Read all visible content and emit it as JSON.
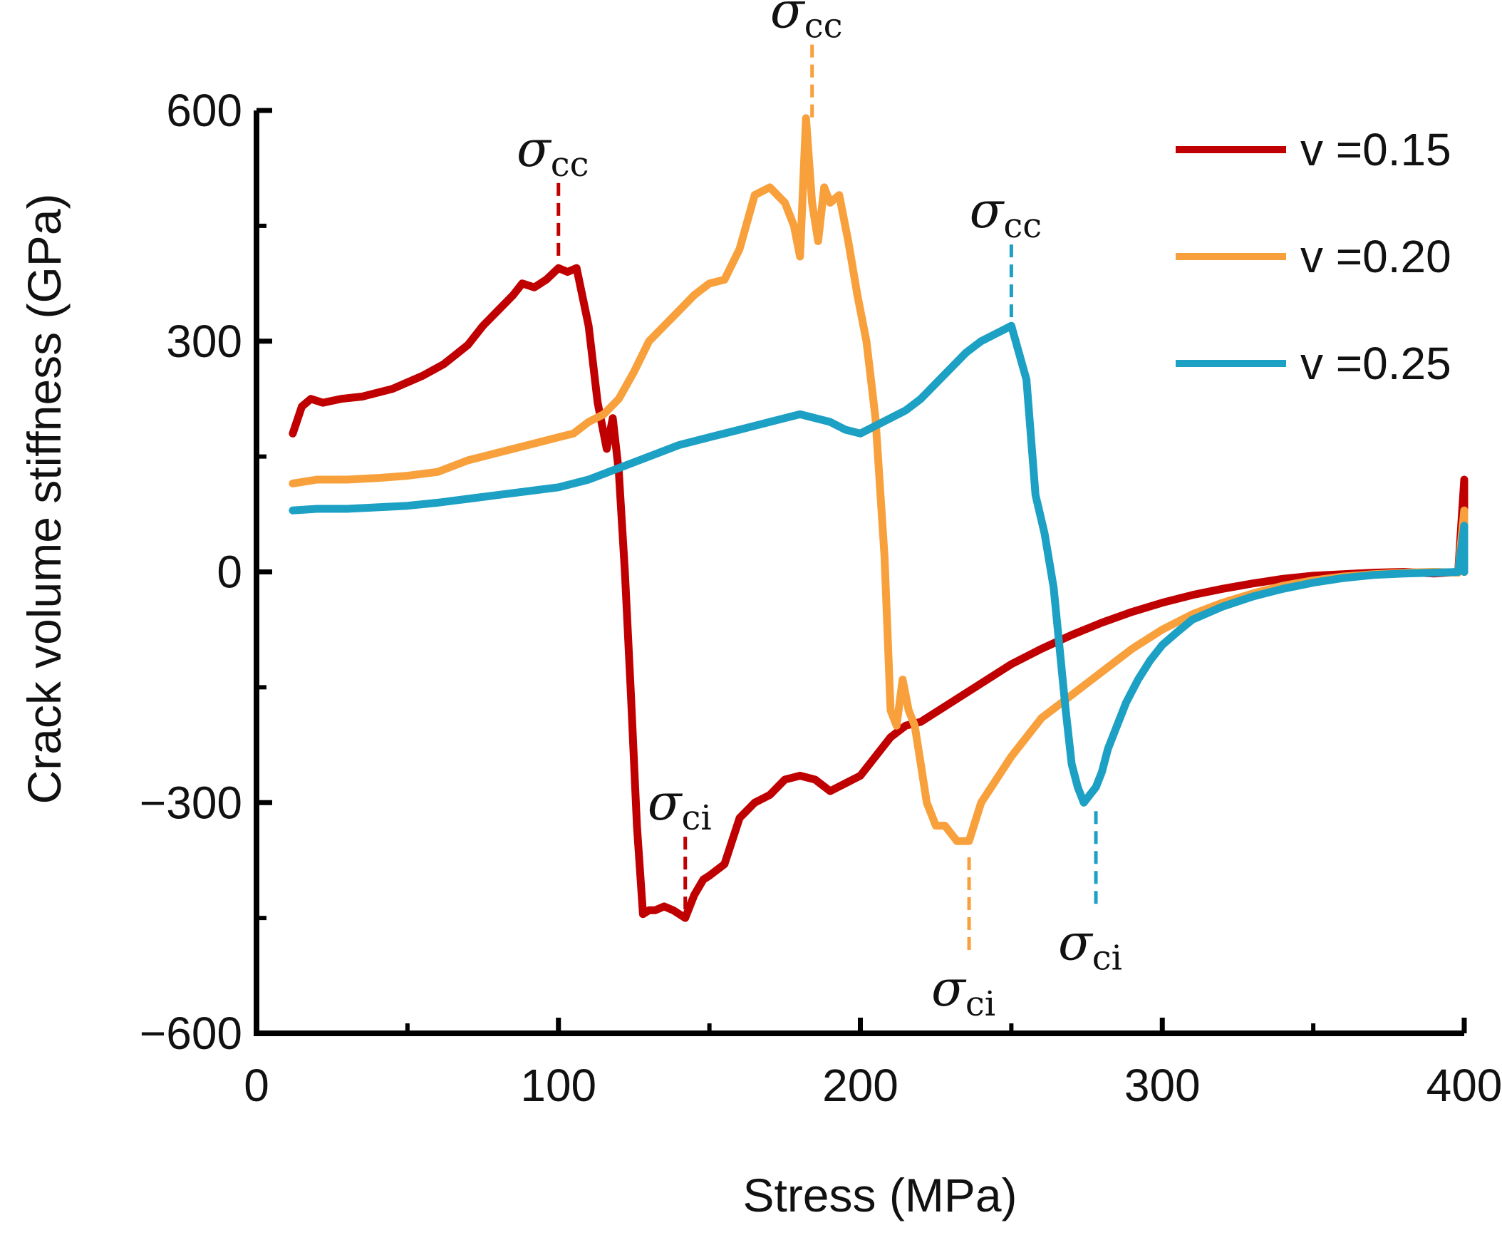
{
  "chart_data": {
    "type": "line",
    "title": "",
    "xlabel": "Stress (MPa)",
    "ylabel": "Crack volume stiffness (GPa)",
    "xlim": [
      0,
      400
    ],
    "ylim": [
      -600,
      600
    ],
    "xticks": [
      "0",
      "100",
      "200",
      "300",
      "400"
    ],
    "yticks": [
      "600",
      "300",
      "0",
      "−300",
      "−600"
    ],
    "yticks_values": [
      600,
      300,
      0,
      -300,
      -600
    ],
    "xticks_values": [
      0,
      100,
      200,
      300,
      400
    ],
    "legend_position": "top-right",
    "series": [
      {
        "name": "v =0.15",
        "color": "#c00000",
        "x": [
          12,
          15,
          18,
          22,
          28,
          35,
          45,
          55,
          62,
          70,
          75,
          80,
          85,
          88,
          92,
          96,
          100,
          103,
          106,
          110,
          113,
          116,
          118,
          120,
          122,
          124,
          126,
          128,
          130,
          132,
          135,
          138,
          142,
          145,
          148,
          150,
          155,
          160,
          165,
          170,
          175,
          180,
          185,
          190,
          195,
          200,
          205,
          210,
          215,
          220,
          230,
          240,
          250,
          260,
          270,
          280,
          290,
          300,
          310,
          320,
          330,
          340,
          350,
          360,
          370,
          380,
          390,
          398,
          400,
          400
        ],
        "y": [
          180,
          215,
          225,
          220,
          225,
          228,
          238,
          255,
          270,
          295,
          320,
          340,
          360,
          375,
          370,
          380,
          395,
          390,
          395,
          320,
          220,
          160,
          200,
          130,
          0,
          -160,
          -330,
          -445,
          -440,
          -440,
          -435,
          -440,
          -450,
          -420,
          -400,
          -395,
          -380,
          -320,
          -300,
          -290,
          -270,
          -265,
          -270,
          -285,
          -275,
          -265,
          -240,
          -215,
          -200,
          -195,
          -170,
          -145,
          -120,
          -100,
          -82,
          -66,
          -52,
          -40,
          -30,
          -22,
          -15,
          -9,
          -5,
          -3,
          -1,
          0,
          -2,
          0,
          120,
          0
        ]
      },
      {
        "name": "v =0.20",
        "color": "#f8a03c",
        "x": [
          12,
          20,
          30,
          40,
          50,
          60,
          70,
          80,
          90,
          100,
          105,
          110,
          115,
          120,
          125,
          130,
          135,
          140,
          145,
          150,
          155,
          160,
          165,
          170,
          175,
          178,
          180,
          182,
          184,
          186,
          188,
          190,
          193,
          196,
          199,
          202,
          205,
          208,
          210,
          212,
          214,
          216,
          218,
          220,
          222,
          225,
          228,
          232,
          236,
          240,
          245,
          250,
          260,
          270,
          280,
          290,
          300,
          310,
          320,
          330,
          340,
          350,
          360,
          370,
          380,
          390,
          398,
          400,
          400
        ],
        "y": [
          115,
          120,
          120,
          122,
          125,
          130,
          145,
          155,
          165,
          175,
          180,
          195,
          205,
          225,
          260,
          300,
          320,
          340,
          360,
          375,
          380,
          420,
          490,
          500,
          480,
          450,
          410,
          590,
          480,
          430,
          500,
          480,
          490,
          430,
          360,
          300,
          200,
          20,
          -180,
          -200,
          -140,
          -180,
          -200,
          -250,
          -300,
          -330,
          -330,
          -350,
          -350,
          -300,
          -270,
          -240,
          -190,
          -160,
          -130,
          -100,
          -75,
          -55,
          -40,
          -28,
          -18,
          -11,
          -6,
          -3,
          -1,
          0,
          -1,
          80,
          0
        ]
      },
      {
        "name": "v =0.25",
        "color": "#1ca0c4",
        "x": [
          12,
          20,
          30,
          40,
          50,
          60,
          70,
          80,
          90,
          100,
          110,
          120,
          130,
          140,
          150,
          160,
          170,
          180,
          185,
          190,
          195,
          200,
          205,
          210,
          215,
          220,
          225,
          230,
          235,
          240,
          245,
          250,
          255,
          258,
          261,
          264,
          266,
          268,
          270,
          272,
          274,
          276,
          278,
          280,
          282,
          285,
          288,
          292,
          296,
          300,
          305,
          310,
          320,
          330,
          340,
          350,
          360,
          370,
          380,
          390,
          398,
          400,
          400
        ],
        "y": [
          80,
          82,
          82,
          84,
          86,
          90,
          95,
          100,
          105,
          110,
          120,
          135,
          150,
          165,
          175,
          185,
          195,
          205,
          200,
          195,
          185,
          180,
          190,
          200,
          210,
          225,
          245,
          265,
          285,
          300,
          310,
          320,
          250,
          100,
          50,
          -20,
          -100,
          -180,
          -250,
          -280,
          -300,
          -290,
          -280,
          -260,
          -230,
          -200,
          -170,
          -140,
          -115,
          -95,
          -78,
          -62,
          -45,
          -32,
          -22,
          -14,
          -8,
          -4,
          -2,
          -1,
          0,
          60,
          0
        ]
      }
    ],
    "annotations": [
      {
        "sigma": "σ",
        "subscript": "cc",
        "x": 100,
        "y": 400,
        "series": "v =0.15",
        "position": "above"
      },
      {
        "sigma": "σ",
        "subscript": "ci",
        "x": 142,
        "y": -450,
        "series": "v =0.15",
        "position": "above"
      },
      {
        "sigma": "σ",
        "subscript": "cc",
        "x": 184,
        "y": 580,
        "series": "v =0.20",
        "position": "above"
      },
      {
        "sigma": "σ",
        "subscript": "ci",
        "x": 236,
        "y": -360,
        "series": "v =0.20",
        "position": "below"
      },
      {
        "sigma": "σ",
        "subscript": "cc",
        "x": 250,
        "y": 320,
        "series": "v =0.25",
        "position": "above"
      },
      {
        "sigma": "σ",
        "subscript": "ci",
        "x": 278,
        "y": -300,
        "series": "v =0.25",
        "position": "below"
      }
    ]
  }
}
